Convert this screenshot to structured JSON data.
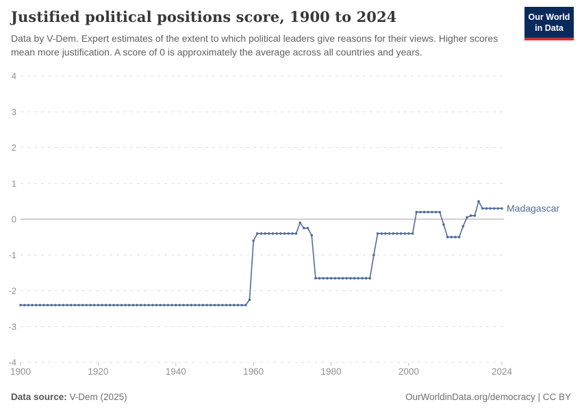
{
  "header": {
    "title": "Justified political positions score, 1900 to 2024",
    "subtitle": "Data by V-Dem. Expert estimates of the extent to which political leaders give reasons for their views. Higher scores mean more justification. A score of 0 is approximately the average across all countries and years.",
    "logo_line1": "Our World",
    "logo_line2": "in Data"
  },
  "chart_data": {
    "type": "line",
    "title": "Justified political positions score, 1900 to 2024",
    "xlabel": "",
    "ylabel": "",
    "x_start": 1900,
    "x_end": 2024,
    "x_step": 1,
    "ylim": [
      -4,
      4
    ],
    "yticks": [
      4,
      3,
      2,
      1,
      0,
      -1,
      -2,
      -3,
      -4
    ],
    "xticks": [
      1900,
      1920,
      1940,
      1960,
      1980,
      2000,
      2024
    ],
    "grid": "dashed horizontal gridlines, solid zero line, legend as end-of-line label",
    "line_color": "#4C6A9C",
    "series": [
      {
        "name": "Madagascar",
        "values": [
          -2.4,
          -2.4,
          -2.4,
          -2.4,
          -2.4,
          -2.4,
          -2.4,
          -2.4,
          -2.4,
          -2.4,
          -2.4,
          -2.4,
          -2.4,
          -2.4,
          -2.4,
          -2.4,
          -2.4,
          -2.4,
          -2.4,
          -2.4,
          -2.4,
          -2.4,
          -2.4,
          -2.4,
          -2.4,
          -2.4,
          -2.4,
          -2.4,
          -2.4,
          -2.4,
          -2.4,
          -2.4,
          -2.4,
          -2.4,
          -2.4,
          -2.4,
          -2.4,
          -2.4,
          -2.4,
          -2.4,
          -2.4,
          -2.4,
          -2.4,
          -2.4,
          -2.4,
          -2.4,
          -2.4,
          -2.4,
          -2.4,
          -2.4,
          -2.4,
          -2.4,
          -2.4,
          -2.4,
          -2.4,
          -2.4,
          -2.4,
          -2.4,
          -2.4,
          -2.25,
          -0.6,
          -0.4,
          -0.4,
          -0.4,
          -0.4,
          -0.4,
          -0.4,
          -0.4,
          -0.4,
          -0.4,
          -0.4,
          -0.4,
          -0.1,
          -0.25,
          -0.25,
          -0.45,
          -1.65,
          -1.65,
          -1.65,
          -1.65,
          -1.65,
          -1.65,
          -1.65,
          -1.65,
          -1.65,
          -1.65,
          -1.65,
          -1.65,
          -1.65,
          -1.65,
          -1.65,
          -1.0,
          -0.4,
          -0.4,
          -0.4,
          -0.4,
          -0.4,
          -0.4,
          -0.4,
          -0.4,
          -0.4,
          -0.4,
          0.2,
          0.2,
          0.2,
          0.2,
          0.2,
          0.2,
          0.2,
          -0.15,
          -0.5,
          -0.5,
          -0.5,
          -0.5,
          -0.2,
          0.05,
          0.1,
          0.1,
          0.5,
          0.3,
          0.3,
          0.3,
          0.3,
          0.3,
          0.3
        ]
      }
    ]
  },
  "footer": {
    "source_label": "Data source:",
    "source_value": "V-Dem (2025)",
    "rights": "OurWorldinData.org/democracy | CC BY"
  },
  "colors": {
    "line": "#4C6A9C",
    "entity_label": "#4C6A9C",
    "gridline": "#dcdcdc",
    "zero_line": "#a2a2a2",
    "axis_text": "#8f8f8f",
    "logo_background": "#0a2a5c",
    "logo_accent": "#cf3335"
  }
}
